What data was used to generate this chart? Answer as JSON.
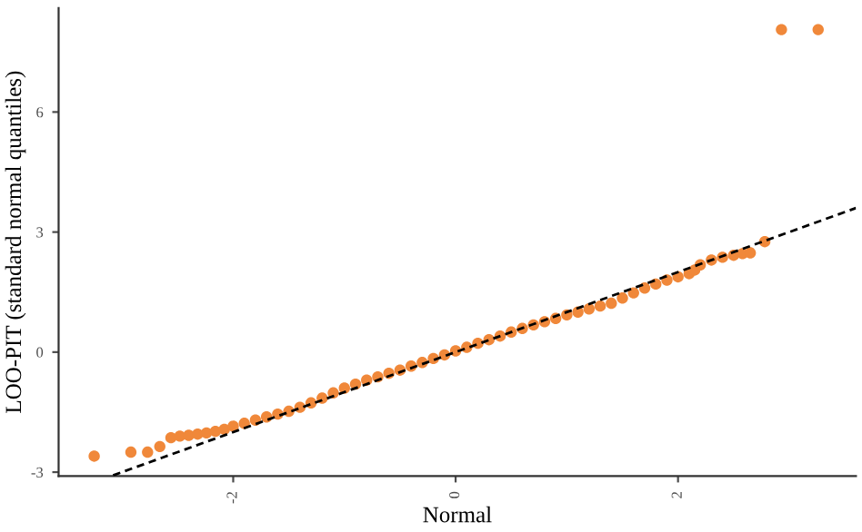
{
  "chart_data": {
    "type": "scatter",
    "xlabel": "Normal",
    "ylabel": "LOO-PIT (standard normal quantiles)",
    "xlim": [
      -3.57,
      3.6
    ],
    "ylim": [
      -3.1,
      8.6
    ],
    "xticks": [
      -2,
      0,
      2
    ],
    "yticks": [
      -3,
      0,
      3,
      6
    ],
    "grid": false,
    "series": [
      {
        "marker": "circle",
        "color": "#f0883a",
        "x": [
          -3.25,
          -2.92,
          -2.77,
          -2.66,
          -2.56,
          -2.48,
          -2.4,
          -2.32,
          -2.24,
          -2.16,
          -2.08,
          -2.0,
          -1.9,
          -1.8,
          -1.7,
          -1.6,
          -1.5,
          -1.4,
          -1.3,
          -1.2,
          -1.1,
          -1.0,
          -0.9,
          -0.8,
          -0.7,
          -0.6,
          -0.5,
          -0.4,
          -0.3,
          -0.2,
          -0.1,
          0.0,
          0.1,
          0.2,
          0.3,
          0.4,
          0.5,
          0.6,
          0.7,
          0.8,
          0.9,
          1.0,
          1.1,
          1.2,
          1.3,
          1.4,
          1.5,
          1.6,
          1.7,
          1.8,
          1.9,
          2.0,
          2.1,
          2.15,
          2.2,
          2.3,
          2.4,
          2.5,
          2.58,
          2.65,
          2.78,
          2.93,
          3.26
        ],
        "values": [
          -2.6,
          -2.5,
          -2.5,
          -2.36,
          -2.14,
          -2.1,
          -2.08,
          -2.05,
          -2.02,
          -1.98,
          -1.93,
          -1.85,
          -1.78,
          -1.7,
          -1.62,
          -1.55,
          -1.48,
          -1.38,
          -1.27,
          -1.15,
          -1.02,
          -0.9,
          -0.8,
          -0.7,
          -0.62,
          -0.53,
          -0.45,
          -0.35,
          -0.26,
          -0.16,
          -0.07,
          0.03,
          0.12,
          0.22,
          0.31,
          0.4,
          0.5,
          0.59,
          0.68,
          0.76,
          0.84,
          0.93,
          1.0,
          1.08,
          1.15,
          1.22,
          1.35,
          1.48,
          1.6,
          1.7,
          1.8,
          1.88,
          1.96,
          2.05,
          2.18,
          2.3,
          2.37,
          2.42,
          2.46,
          2.48,
          2.76,
          8.06,
          8.06
        ]
      },
      {
        "type": "line",
        "marker": "none",
        "color": "#000000",
        "line_style": "dashed",
        "x": [
          -3.08,
          3.6
        ],
        "values": [
          -3.08,
          3.6
        ]
      }
    ]
  }
}
